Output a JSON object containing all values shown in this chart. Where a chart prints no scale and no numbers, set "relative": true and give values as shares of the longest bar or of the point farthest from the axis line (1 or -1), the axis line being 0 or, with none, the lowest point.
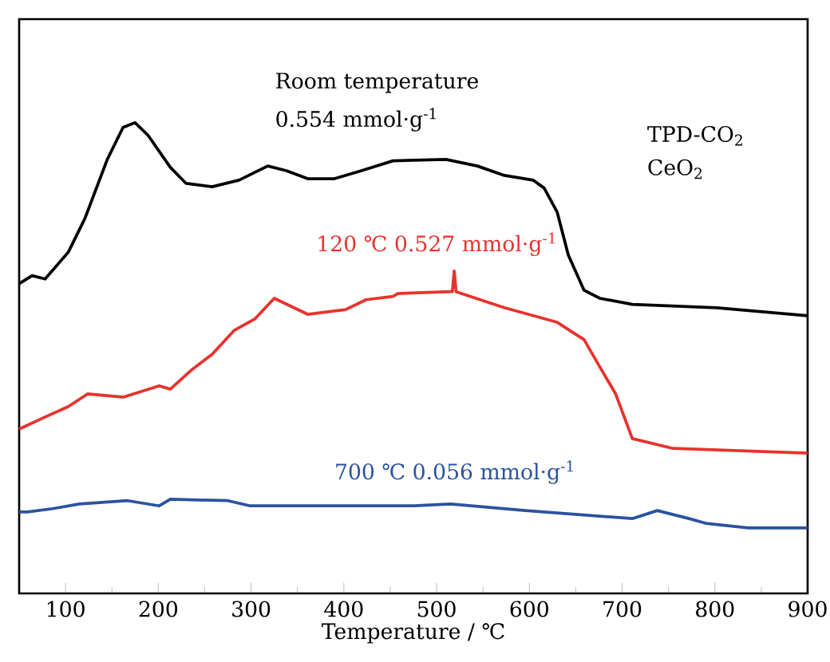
{
  "chart_data": {
    "type": "line",
    "relative": true,
    "xlabel": "Temperature / ℃",
    "xlim": [
      50,
      900
    ],
    "xticks": [
      100,
      200,
      300,
      400,
      500,
      600,
      700,
      800,
      900
    ],
    "annotations": [
      "Room temperature",
      "0.554 mmol·g$^{-1}$",
      "120 ℃ 0.527 mmol·g$^{-1}$",
      "700 ℃ 0.056 mmol·g$^{-1}$",
      "TPD-CO$_{2}$",
      "CeO$_{2}$"
    ],
    "series": [
      {
        "color": "#000000",
        "x": [
          50,
          64,
          78,
          103,
          121,
          145,
          162,
          175,
          189,
          213,
          230,
          258,
          287,
          318,
          338,
          361,
          390,
          419,
          453,
          510,
          544,
          573,
          604,
          616,
          630,
          642,
          659,
          676,
          711,
          802,
          900
        ],
        "values": [
          0.658,
          0.675,
          0.668,
          0.725,
          0.797,
          0.922,
          0.99,
          1.0,
          0.973,
          0.905,
          0.871,
          0.864,
          0.878,
          0.908,
          0.898,
          0.881,
          0.881,
          0.898,
          0.919,
          0.922,
          0.908,
          0.888,
          0.878,
          0.861,
          0.81,
          0.719,
          0.644,
          0.627,
          0.614,
          0.607,
          0.59
        ]
      },
      {
        "color": "#e8322d",
        "x": [
          50,
          76,
          103,
          124,
          162,
          201,
          213,
          236,
          258,
          282,
          304,
          325,
          361,
          402,
          424,
          453,
          458,
          515,
          517,
          519,
          521,
          573,
          630,
          659,
          676,
          693,
          711,
          755,
          900
        ],
        "values": [
          0.349,
          0.373,
          0.397,
          0.424,
          0.417,
          0.441,
          0.434,
          0.475,
          0.508,
          0.559,
          0.583,
          0.627,
          0.593,
          0.603,
          0.624,
          0.631,
          0.637,
          0.641,
          0.641,
          0.685,
          0.641,
          0.607,
          0.576,
          0.539,
          0.481,
          0.424,
          0.329,
          0.308,
          0.298
        ]
      },
      {
        "color": "#2a52a0",
        "x": [
          50,
          59,
          86,
          115,
          167,
          201,
          213,
          275,
          299,
          373,
          476,
          515,
          596,
          711,
          738,
          772,
          790,
          836,
          900
        ],
        "values": [
          0.173,
          0.173,
          0.18,
          0.19,
          0.197,
          0.186,
          0.2,
          0.197,
          0.186,
          0.186,
          0.186,
          0.19,
          0.176,
          0.159,
          0.176,
          0.159,
          0.149,
          0.139,
          0.139
        ]
      }
    ]
  }
}
